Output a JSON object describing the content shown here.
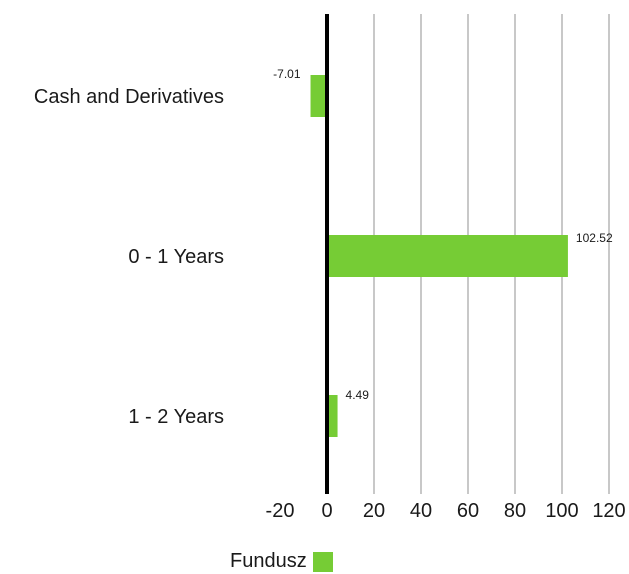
{
  "chart_data": {
    "type": "bar",
    "orientation": "horizontal",
    "categories": [
      "Cash and Derivatives",
      "0 - 1 Years",
      "1 - 2 Years"
    ],
    "series": [
      {
        "name": "Fundusz",
        "values": [
          -7.01,
          102.52,
          4.49
        ],
        "data_labels": [
          "-7.01",
          "102.52",
          "4.49"
        ],
        "color": "#76cc35"
      }
    ],
    "xlim": [
      -20,
      120
    ],
    "x_ticks": [
      -20,
      0,
      20,
      40,
      60,
      80,
      100,
      120
    ],
    "x_tick_labels": [
      "-20",
      "0",
      "20",
      "40",
      "60",
      "80",
      "100",
      "120"
    ],
    "grid": "vertical",
    "grid_color": "#c8c8c8",
    "zero_line_color": "#000000",
    "legend": "bottom"
  }
}
